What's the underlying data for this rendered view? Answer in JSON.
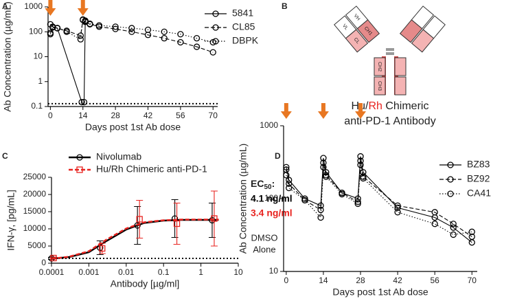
{
  "chart_data": [
    {
      "panel": "A",
      "type": "line",
      "ylabel": "Ab Concentration (µg/mL)",
      "xlabel": "Days post 1st Ab dose",
      "xlim": [
        -1,
        72
      ],
      "xticks": [
        0,
        14,
        28,
        42,
        56,
        70
      ],
      "ylim": [
        0.1,
        1000
      ],
      "yticks": [
        0.1,
        1,
        10,
        100,
        1000
      ],
      "ylog": true,
      "legend": "upper right",
      "arrow_days": [
        0,
        14
      ],
      "arrow_color": "#e87722",
      "reference_line": 0.13,
      "series": [
        {
          "name": "5841",
          "color": "#000000",
          "dash": "solid",
          "marker": "circle",
          "x": [
            0,
            1,
            3,
            13.5,
            14.5,
            15
          ],
          "values": [
            200,
            160,
            140,
            0.15,
            0.15,
            280
          ]
        },
        {
          "name": "CL85",
          "color": "#000000",
          "dash": "dashed",
          "marker": "circle",
          "x": [
            0,
            1,
            3,
            7,
            13,
            14,
            15,
            17,
            21,
            28,
            35,
            42,
            49,
            56,
            63,
            70
          ],
          "values": [
            90,
            150,
            140,
            110,
            70,
            300,
            250,
            200,
            160,
            130,
            100,
            75,
            55,
            38,
            25,
            15
          ]
        },
        {
          "name": "DBPK",
          "color": "#000000",
          "dash": "dotted",
          "marker": "circle",
          "x": [
            0,
            1,
            3,
            7,
            13,
            14,
            15,
            17,
            21,
            28,
            35,
            42,
            49,
            56,
            63,
            70
          ],
          "values": [
            80,
            150,
            140,
            100,
            50,
            310,
            270,
            210,
            180,
            160,
            140,
            120,
            100,
            80,
            55,
            38
          ]
        }
      ]
    },
    {
      "panel": "C",
      "type": "dose_response",
      "ylabel": "IFN-γ, [pg/mL]",
      "xlabel": "Antibody [µg/ml]",
      "xlim": [
        0.0001,
        10
      ],
      "xlog": true,
      "xticks": [
        0.0001,
        0.001,
        0.01,
        0.1,
        1,
        10
      ],
      "ylim": [
        0,
        25000
      ],
      "yticks": [
        0,
        5000,
        10000,
        15000,
        20000,
        25000
      ],
      "legend": "upper left",
      "x": [
        0.0001,
        0.002,
        0.02,
        0.2,
        2
      ],
      "curve_x": [
        0.0001,
        0.0003,
        0.001,
        0.003,
        0.01,
        0.03,
        0.1,
        0.3,
        1,
        3
      ],
      "reference_line": 1400,
      "reference_label": [
        "DMSO",
        "Alone"
      ],
      "ec50_label": {
        "text": "EC",
        "sub": "50",
        "suffix": ":"
      },
      "annotations": [
        {
          "text": "4.1 ng/ml",
          "color": "#000000"
        },
        {
          "text": "3.4 ng/ml",
          "color": "#e8231f"
        }
      ],
      "series": [
        {
          "name": "Nivolumab",
          "color": "#000000",
          "dash": "solid",
          "marker": "circle",
          "values": [
            1400,
            4500,
            11000,
            13000,
            12500
          ],
          "errors": [
            300,
            2000,
            5500,
            5500,
            5000
          ],
          "curve": [
            1300,
            1800,
            3200,
            6500,
            9800,
            11700,
            12400,
            12600,
            12600,
            12600
          ]
        },
        {
          "name": "Hu/Rh Chimeric anti-PD-1",
          "color": "#e8231f",
          "dash": "dashed",
          "marker": "square",
          "values": [
            1500,
            4300,
            12800,
            11500,
            13000
          ],
          "errors": [
            300,
            1500,
            5500,
            6000,
            8000
          ],
          "curve": [
            1300,
            1900,
            3500,
            6900,
            10100,
            11900,
            12500,
            12700,
            12700,
            12700
          ]
        }
      ]
    },
    {
      "panel": "D",
      "type": "line",
      "ylabel": "Ab Concentration (µg/mL)",
      "xlabel": "Days post 1st Ab dose",
      "xlim": [
        -1,
        72
      ],
      "xticks": [
        0,
        14,
        28,
        42,
        56,
        70
      ],
      "ylim": [
        10,
        1000
      ],
      "yticks": [
        10,
        100,
        1000
      ],
      "ylog": true,
      "legend": "upper right",
      "arrow_days": [
        0,
        14,
        28
      ],
      "arrow_color": "#e87722",
      "series": [
        {
          "name": "BZ83",
          "color": "#000000",
          "dash": "solid",
          "marker": "circle",
          "x": [
            0,
            1,
            7,
            13,
            14,
            15,
            21,
            27,
            28,
            29,
            42,
            56,
            63,
            70
          ],
          "values": [
            270,
            180,
            100,
            80,
            360,
            230,
            120,
            100,
            380,
            230,
            75,
            55,
            40,
            25
          ]
        },
        {
          "name": "BZ92",
          "color": "#000000",
          "dash": "dashed",
          "marker": "circle",
          "x": [
            0,
            1,
            7,
            13,
            14,
            15,
            21,
            27,
            28,
            29,
            42,
            56,
            63,
            70
          ],
          "values": [
            250,
            160,
            95,
            70,
            310,
            210,
            120,
            90,
            330,
            200,
            80,
            65,
            45,
            30
          ]
        },
        {
          "name": "CA41",
          "color": "#000000",
          "dash": "dotted",
          "marker": "circle",
          "x": [
            0,
            1,
            7,
            13,
            14,
            15,
            21,
            27,
            28,
            29,
            42,
            56,
            63,
            70
          ],
          "values": [
            210,
            140,
            95,
            55,
            270,
            200,
            115,
            85,
            290,
            190,
            65,
            45,
            32,
            35
          ]
        }
      ]
    }
  ],
  "diagram": {
    "panel": "B",
    "title": [
      "Hu/",
      "Rh",
      " Chimeric"
    ],
    "subtitle": "anti-PD-1 Antibody",
    "domains": [
      "VH",
      "VL",
      "CH1",
      "CL",
      "CH2",
      "CH3"
    ]
  }
}
